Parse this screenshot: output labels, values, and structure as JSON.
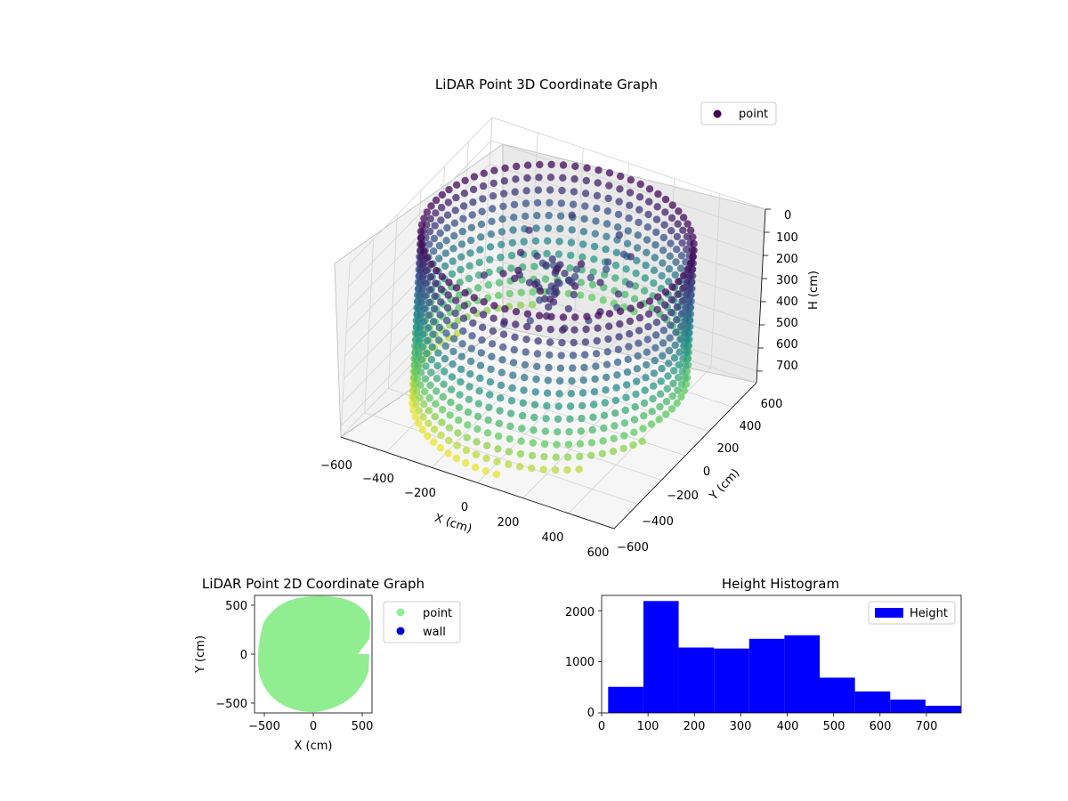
{
  "chart_data": [
    {
      "type": "scatter",
      "subtype": "3d",
      "title": "LiDAR Point 3D Coordinate Graph",
      "xlabel": "X (cm)",
      "ylabel": "Y (cm)",
      "zlabel": "H (cm)",
      "x_ticks": [
        "−600",
        "−400",
        "−200",
        "0",
        "200",
        "400",
        "600"
      ],
      "y_ticks": [
        "600",
        "400",
        "200",
        "0",
        "−200",
        "−400",
        "−600"
      ],
      "z_ticks": [
        "0",
        "100",
        "200",
        "300",
        "400",
        "500",
        "600",
        "700"
      ],
      "xlim": [
        -600,
        600
      ],
      "ylim": [
        -600,
        600
      ],
      "zlim": [
        750,
        0
      ],
      "z_inverted": true,
      "colormap": "viridis",
      "legend": {
        "position": "top-right",
        "entries": [
          {
            "label": "point",
            "color": "#440154"
          }
        ]
      },
      "series": [
        {
          "name": "point",
          "shape": "ring cylinder",
          "radius_cm": 560,
          "height_range_cm": [
            0,
            760
          ]
        }
      ]
    },
    {
      "type": "scatter",
      "title": "LiDAR Point 2D Coordinate Graph",
      "xlabel": "X (cm)",
      "ylabel": "Y (cm)",
      "x_ticks": [
        "−500",
        "0",
        "500"
      ],
      "y_ticks": [
        "500",
        "0",
        "−500"
      ],
      "xlim": [
        -600,
        600
      ],
      "ylim": [
        -600,
        600
      ],
      "legend": {
        "position": "outside-right",
        "entries": [
          {
            "label": "point",
            "color": "#90ee90"
          },
          {
            "label": "wall",
            "color": "#0000cd"
          }
        ]
      }
    },
    {
      "type": "bar",
      "subtype": "histogram",
      "title": "Height Histogram",
      "x_ticks": [
        "0",
        "100",
        "200",
        "300",
        "400",
        "500",
        "600",
        "700"
      ],
      "y_ticks": [
        "0",
        "1000",
        "2000"
      ],
      "xlim": [
        0,
        775
      ],
      "ylim": [
        0,
        2300
      ],
      "bin_edges": [
        14,
        90,
        166,
        242,
        318,
        394,
        470,
        546,
        622,
        698,
        774
      ],
      "values": [
        510,
        2190,
        1280,
        1260,
        1450,
        1520,
        690,
        420,
        260,
        140
      ],
      "color": "#0000ff",
      "legend": {
        "position": "top-right",
        "entries": [
          {
            "label": "Height",
            "color": "#0000ff"
          }
        ]
      }
    }
  ]
}
